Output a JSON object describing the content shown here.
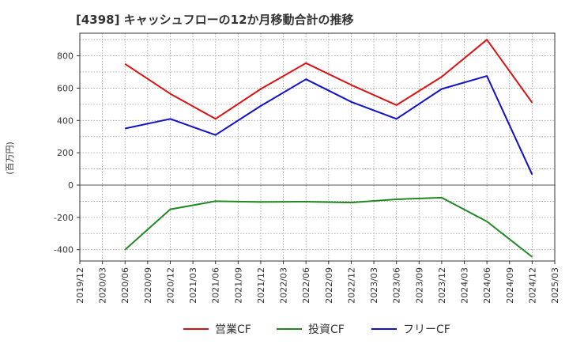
{
  "chart_data": {
    "type": "line",
    "title": "[4398]  キャッシュフローの12か月移動合計の推移",
    "ylabel": "(百万円)",
    "xlabel": "",
    "ylim": [
      -470,
      940
    ],
    "yticks": [
      -400,
      -200,
      0,
      200,
      400,
      600,
      800
    ],
    "ytick_labels": [
      "-400",
      "-200",
      "0",
      "200",
      "400",
      "600",
      "800"
    ],
    "x_tick_labels": [
      "2019/12",
      "2020/03",
      "2020/06",
      "2020/09",
      "2020/12",
      "2021/03",
      "2021/06",
      "2021/09",
      "2021/12",
      "2022/03",
      "2022/06",
      "2022/09",
      "2022/12",
      "2023/03",
      "2023/06",
      "2023/09",
      "2023/12",
      "2024/03",
      "2024/06",
      "2024/09",
      "2024/12",
      "2025/03"
    ],
    "grid": true,
    "legend_position": "bottom",
    "series": [
      {
        "name": "営業CF",
        "color": "#dd1111",
        "points": [
          {
            "x": "2020/06",
            "y": 750
          },
          {
            "x": "2020/12",
            "y": 565
          },
          {
            "x": "2021/06",
            "y": 410
          },
          {
            "x": "2021/12",
            "y": 595
          },
          {
            "x": "2022/06",
            "y": 755
          },
          {
            "x": "2022/12",
            "y": 620
          },
          {
            "x": "2023/06",
            "y": 495
          },
          {
            "x": "2023/12",
            "y": 670
          },
          {
            "x": "2024/06",
            "y": 900
          },
          {
            "x": "2024/12",
            "y": 510
          }
        ]
      },
      {
        "name": "投資CF",
        "color": "#228822",
        "points": [
          {
            "x": "2020/06",
            "y": -400
          },
          {
            "x": "2020/12",
            "y": -150
          },
          {
            "x": "2021/06",
            "y": -100
          },
          {
            "x": "2021/12",
            "y": -105
          },
          {
            "x": "2022/06",
            "y": -103
          },
          {
            "x": "2022/12",
            "y": -108
          },
          {
            "x": "2023/06",
            "y": -88
          },
          {
            "x": "2023/12",
            "y": -78
          },
          {
            "x": "2024/06",
            "y": -225
          },
          {
            "x": "2024/12",
            "y": -445
          }
        ]
      },
      {
        "name": "フリーCF",
        "color": "#1111cc",
        "points": [
          {
            "x": "2020/06",
            "y": 350
          },
          {
            "x": "2020/12",
            "y": 410
          },
          {
            "x": "2021/06",
            "y": 310
          },
          {
            "x": "2021/12",
            "y": 490
          },
          {
            "x": "2022/06",
            "y": 655
          },
          {
            "x": "2022/12",
            "y": 515
          },
          {
            "x": "2023/06",
            "y": 410
          },
          {
            "x": "2023/12",
            "y": 595
          },
          {
            "x": "2024/06",
            "y": 675
          },
          {
            "x": "2024/12",
            "y": 65
          }
        ]
      }
    ]
  }
}
